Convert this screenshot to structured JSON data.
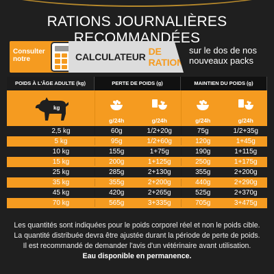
{
  "title": "RATIONS JOURNALIÈRES RECOMMANDÉES",
  "calculator": {
    "consult_label": "Consulter notre",
    "name_part1": "CALCULATEUR",
    "name_part2": "DE RATION",
    "note": "sur le dos de nos nouveaux packs"
  },
  "table": {
    "headers": [
      "POIDS À L'ÂGE ADULTE (kg)",
      "PERTE DE POIDS (g)",
      "MAINTIEN DU POIDS (g)"
    ],
    "dog_label": "kg",
    "sub_label": "g/24h",
    "rows": [
      {
        "weight": "2,5 kg",
        "loss_dry": "60g",
        "loss_mix": "1/2+20g",
        "maint_dry": "75g",
        "maint_mix": "1/2+35g"
      },
      {
        "weight": "5 kg",
        "loss_dry": "95g",
        "loss_mix": "1/2+60g",
        "maint_dry": "120g",
        "maint_mix": "1+45g"
      },
      {
        "weight": "10 kg",
        "loss_dry": "155g",
        "loss_mix": "1+75g",
        "maint_dry": "190g",
        "maint_mix": "1+115g"
      },
      {
        "weight": "15 kg",
        "loss_dry": "200g",
        "loss_mix": "1+125g",
        "maint_dry": "250g",
        "maint_mix": "1+175g"
      },
      {
        "weight": "25 kg",
        "loss_dry": "285g",
        "loss_mix": "2+130g",
        "maint_dry": "355g",
        "maint_mix": "2+200g"
      },
      {
        "weight": "35 kg",
        "loss_dry": "355g",
        "loss_mix": "2+200g",
        "maint_dry": "440g",
        "maint_mix": "2+290g"
      },
      {
        "weight": "45 kg",
        "loss_dry": "420g",
        "loss_mix": "2+265g",
        "maint_dry": "525g",
        "maint_mix": "2+370g"
      },
      {
        "weight": "70 kg",
        "loss_dry": "565g",
        "loss_mix": "3+335g",
        "maint_dry": "705g",
        "maint_mix": "3+475g"
      }
    ]
  },
  "footer": {
    "line1": "Les quantités sont indiquées pour le poids corporel réel et non le poids cible.",
    "line2": "La quantité distribuée devra être ajustée durant la période de perte de poids.",
    "line3": "Il est recommandé de demander l'avis d'un vétérinaire avant utilisation.",
    "line4": "Eau disponible en permanence."
  },
  "colors": {
    "accent": "#f59b20",
    "background": "#1f1f1f"
  }
}
